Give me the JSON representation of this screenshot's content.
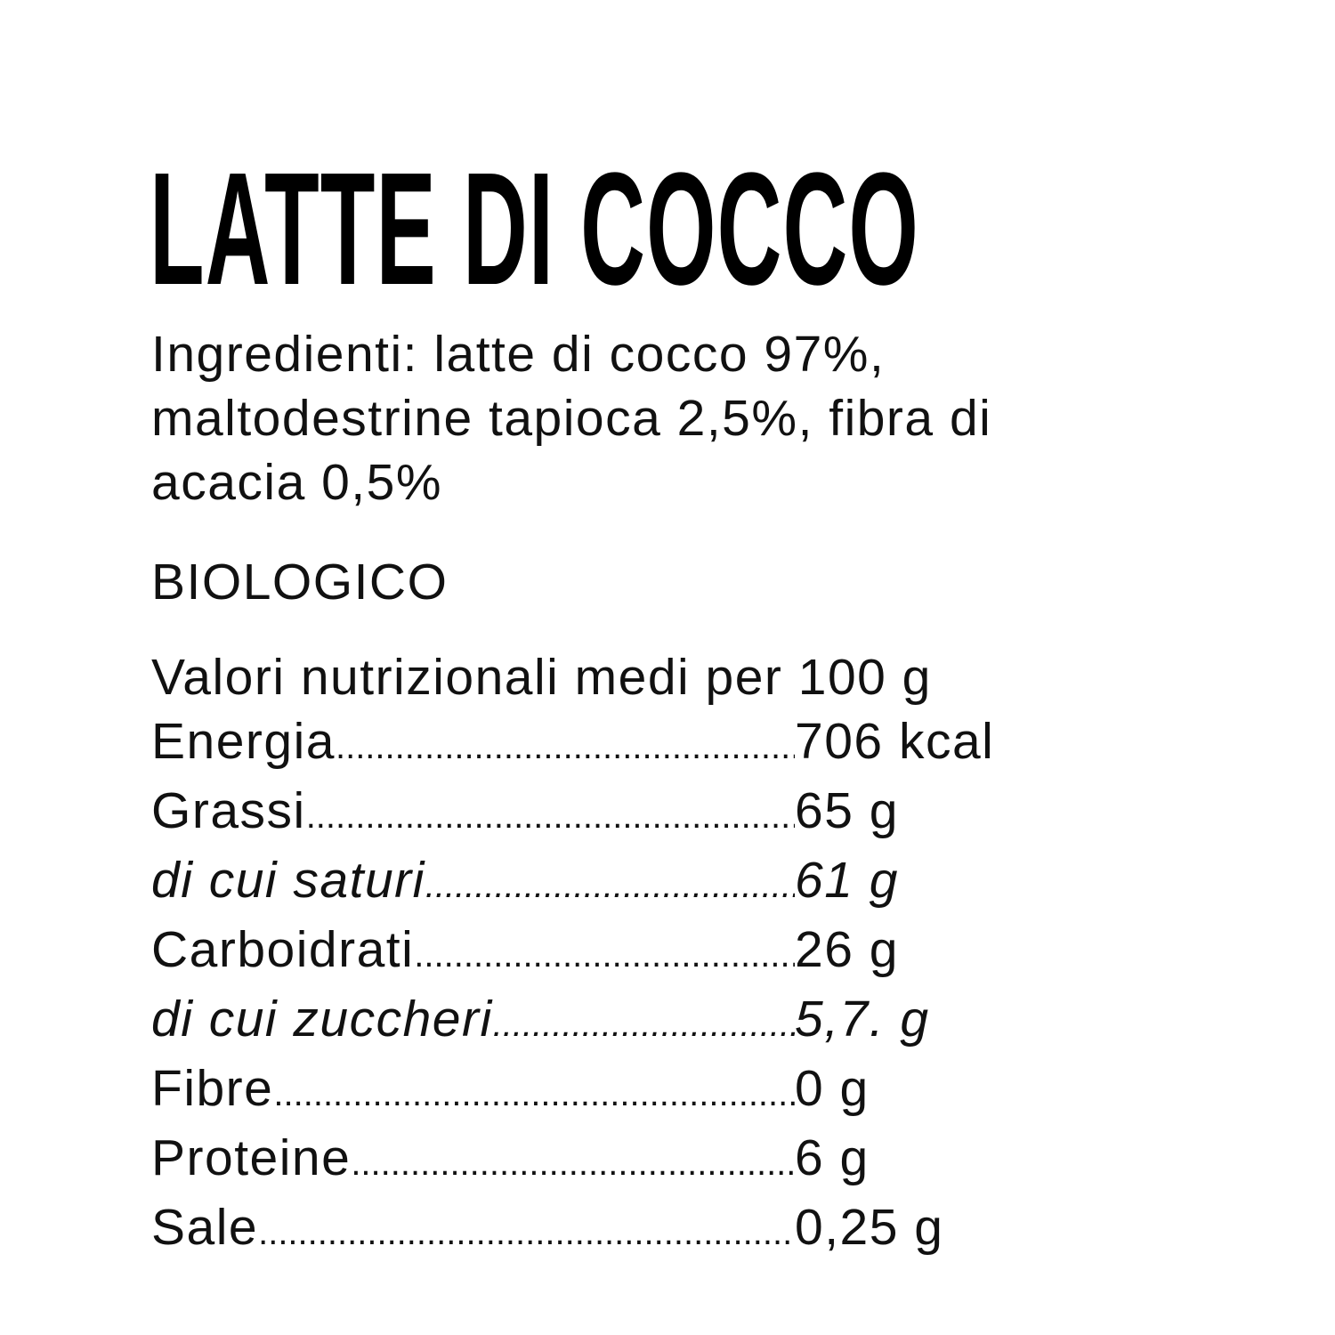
{
  "title": "LATTE DI COCCO",
  "ingredients": "Ingredienti: latte di cocco 97%, maltodestrine tapioca 2,5%, fibra di acacia 0,5%",
  "certification": "BIOLOGICO",
  "nutrition": {
    "header": "Valori nutrizionali medi per 100 g",
    "rows": [
      {
        "label": "Energia",
        "value": "706 kcal"
      },
      {
        "label": "Grassi",
        "value": "65 g"
      },
      {
        "label": "di cui saturi",
        "value": "61 g"
      },
      {
        "label": "Carboidrati",
        "value": "26 g"
      },
      {
        "label": "di cui zuccheri",
        "value": "5,7. g"
      },
      {
        "label": "Fibre",
        "value": "0 g"
      },
      {
        "label": "Proteine",
        "value": "6 g"
      },
      {
        "label": "Sale",
        "value": "0,25 g"
      }
    ]
  }
}
